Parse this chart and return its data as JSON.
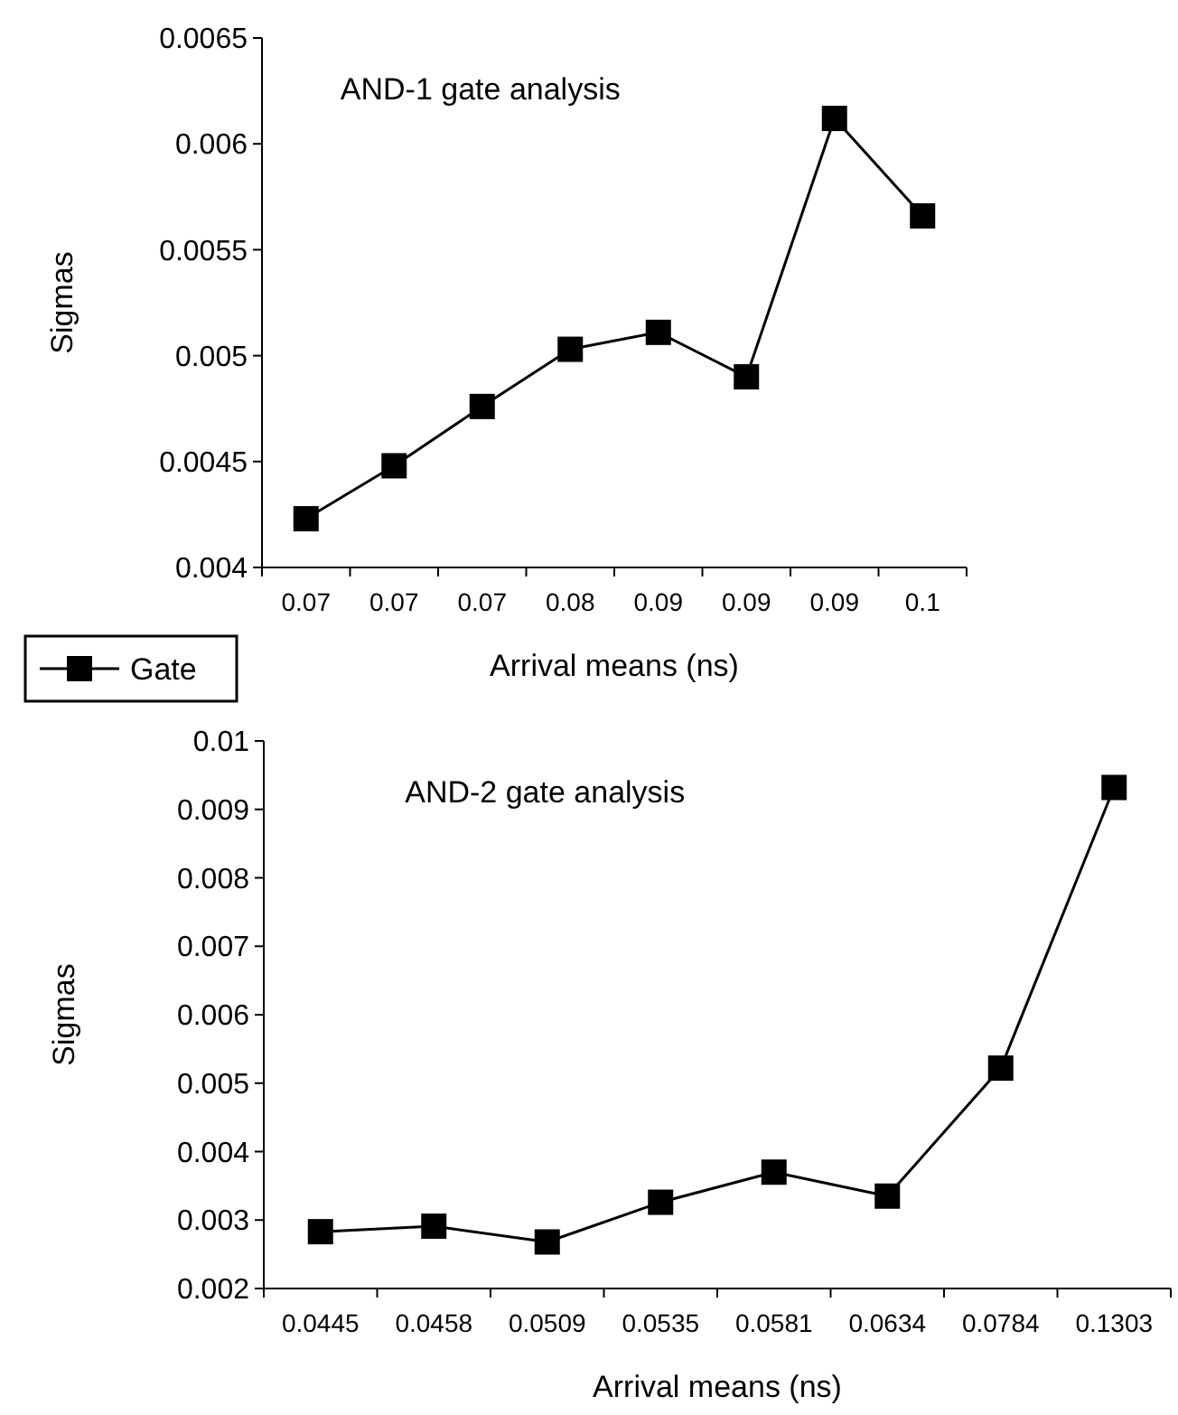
{
  "chart_data": [
    {
      "type": "line",
      "title": "AND-1 gate analysis",
      "xlabel": "Arrival means (ns)",
      "ylabel": "Sigmas",
      "categories": [
        "0.07",
        "0.07",
        "0.07",
        "0.08",
        "0.09",
        "0.09",
        "0.09",
        "0.1"
      ],
      "series": [
        {
          "color": "#000000",
          "values": [
            0.00423,
            0.00448,
            0.00476,
            0.00503,
            0.00511,
            0.0049,
            0.00612,
            0.00566
          ]
        }
      ],
      "ylim": [
        0.004,
        0.0065
      ],
      "yticks": [
        0.004,
        0.0045,
        0.005,
        0.0055,
        0.006,
        0.0065
      ],
      "grid": false,
      "legend": false,
      "marker": "square",
      "line_style": "solid"
    },
    {
      "type": "line",
      "title": "AND-2 gate analysis",
      "xlabel": "Arrival means (ns)",
      "ylabel": "Sigmas",
      "categories": [
        "0.0445",
        "0.0458",
        "0.0509",
        "0.0535",
        "0.0581",
        "0.0634",
        "0.0784",
        "0.1303"
      ],
      "series": [
        {
          "name": "Gate",
          "color": "#000000",
          "values": [
            0.00283,
            0.00291,
            0.00268,
            0.00326,
            0.0037,
            0.00335,
            0.00522,
            0.00932
          ]
        }
      ],
      "ylim": [
        0.002,
        0.01
      ],
      "yticks": [
        0.002,
        0.003,
        0.004,
        0.005,
        0.006,
        0.007,
        0.008,
        0.009,
        0.01
      ],
      "grid": false,
      "legend": "top left",
      "marker": "square",
      "line_style": "solid"
    }
  ]
}
